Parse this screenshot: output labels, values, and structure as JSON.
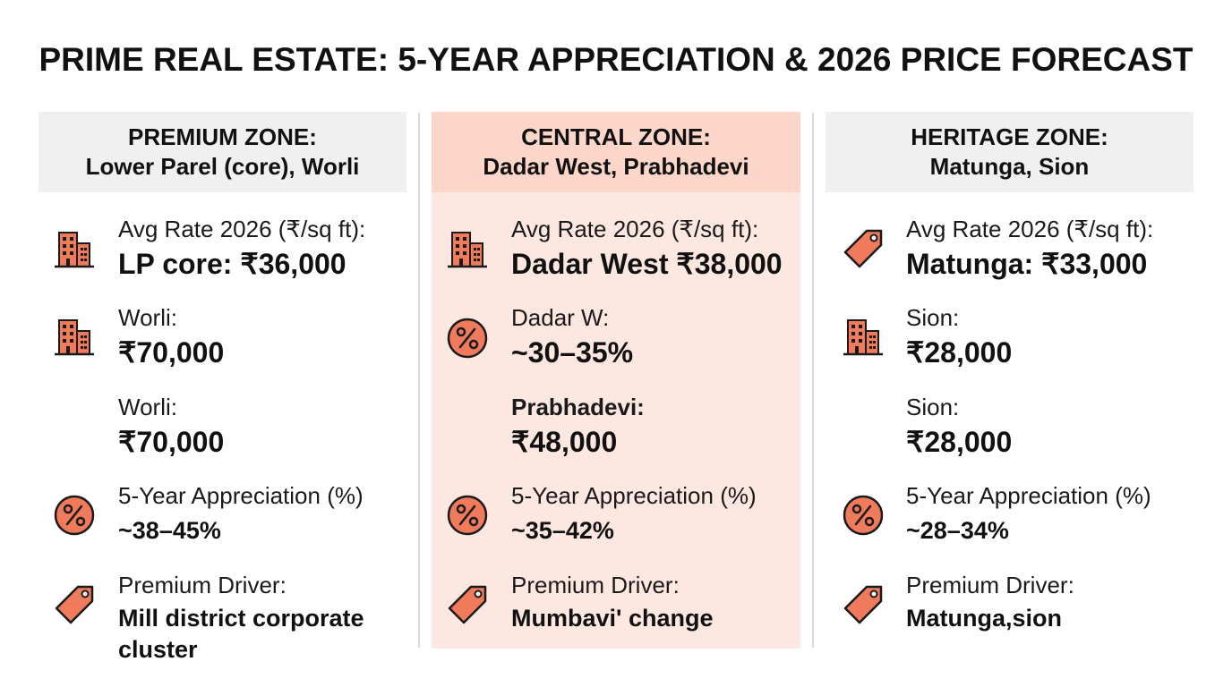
{
  "title": "PRIME REAL ESTATE: 5-YEAR APPRECIATION & 2026 PRICE FORECAST",
  "zones": [
    {
      "header_line1": "PREMIUM ZONE:",
      "header_line2": "Lower Parel (core), Worli",
      "rows": [
        {
          "icon": "building-icon",
          "label": "Avg Rate 2026 (₹/sq ft):",
          "value": "LP core: ₹36,000"
        },
        {
          "icon": "building-icon",
          "label": "Worli:",
          "value": "₹70,000"
        },
        {
          "icon": "",
          "label": "Worli:",
          "value": "₹70,000"
        },
        {
          "icon": "percent-icon",
          "label": "5-Year Appreciation (%)",
          "value": "~38–45%"
        },
        {
          "icon": "price-tag-icon",
          "label": "Premium Driver:",
          "value": "Mill district corporate",
          "value2": "cluster"
        }
      ]
    },
    {
      "header_line1": "CENTRAL ZONE:",
      "header_line2": "Dadar West, Prabhadevi",
      "rows": [
        {
          "icon": "building-icon",
          "label": "Avg Rate 2026 (₹/sq ft):",
          "value": "Dadar West ₹38,000"
        },
        {
          "icon": "percent-icon",
          "label": "Dadar W:",
          "value": "~30–35%"
        },
        {
          "icon": "",
          "label": "Prabhadevi:",
          "value": "₹48,000"
        },
        {
          "icon": "percent-icon",
          "label": "5-Year Appreciation (%)",
          "value": "~35–42%"
        },
        {
          "icon": "price-tag-icon",
          "label": "Premium Driver:",
          "value": "Mumbavi' change"
        }
      ]
    },
    {
      "header_line1": "HERITAGE ZONE:",
      "header_line2": "Matunga, Sion",
      "rows": [
        {
          "icon": "price-tag-icon",
          "label": "Avg Rate 2026 (₹/sq ft):",
          "value": "Matunga: ₹33,000"
        },
        {
          "icon": "building-icon",
          "label": "Sion:",
          "value": "₹28,000"
        },
        {
          "icon": "",
          "label": "Sion:",
          "value": "₹28,000"
        },
        {
          "icon": "percent-icon",
          "label": "5-Year Appreciation (%)",
          "value": "~28–34%"
        },
        {
          "icon": "price-tag-icon",
          "label": "Premium Driver:",
          "value": "Matunga,sion"
        }
      ]
    }
  ],
  "colors": {
    "accent": "#f07a5c",
    "icon_stroke": "#1a1a1a",
    "center_bg": "#fde7e1",
    "center_header_bg": "#fbd6c9",
    "side_header_bg": "#f0f0f0"
  }
}
